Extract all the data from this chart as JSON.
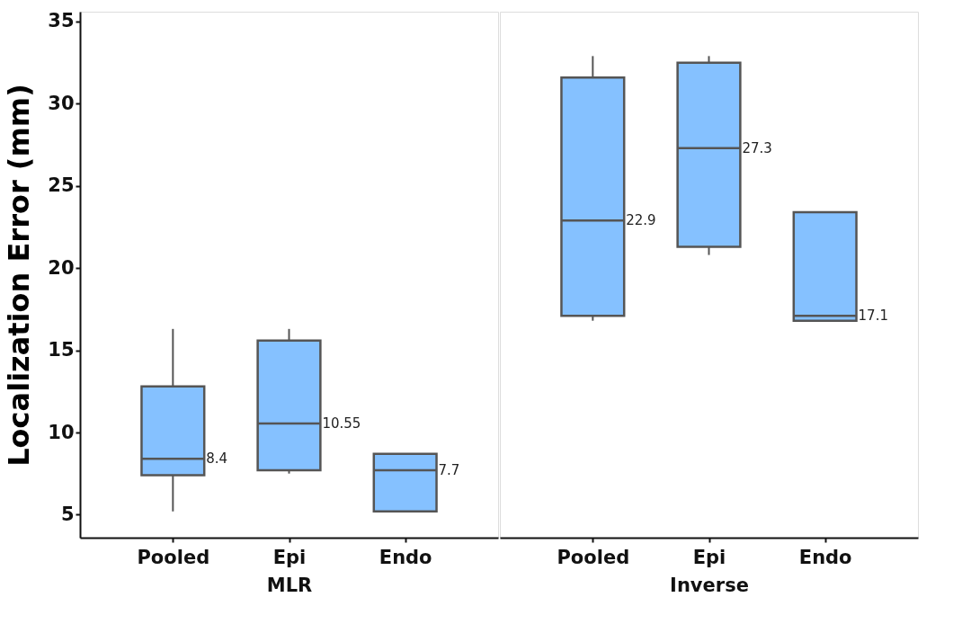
{
  "chart_data": [
    {
      "type": "box",
      "ylabel": "Localization Error (mm)",
      "xlabel": "MLR",
      "categories": [
        "Pooled",
        "Epi",
        "Endo"
      ],
      "boxes": [
        {
          "low": 5.2,
          "q1": 7.4,
          "median": 8.4,
          "q3": 12.8,
          "high": 16.3
        },
        {
          "low": 7.5,
          "q1": 7.7,
          "median": 10.55,
          "q3": 15.6,
          "high": 16.3
        },
        {
          "low": 5.2,
          "q1": 5.2,
          "median": 7.7,
          "q3": 8.7,
          "high": 8.7
        }
      ],
      "value_labels": [
        "8.4",
        "10.55",
        "7.7"
      ],
      "color": "#85c1ff",
      "ylim": [
        3.6,
        35.6
      ],
      "yticks": [
        5,
        10,
        15,
        20,
        25,
        30,
        35
      ],
      "grid": false
    },
    {
      "type": "box",
      "xlabel": "Inverse",
      "categories": [
        "Pooled",
        "Epi",
        "Endo"
      ],
      "boxes": [
        {
          "low": 16.8,
          "q1": 17.1,
          "median": 22.9,
          "q3": 31.6,
          "high": 32.9
        },
        {
          "low": 20.8,
          "q1": 21.3,
          "median": 27.3,
          "q3": 32.5,
          "high": 32.9
        },
        {
          "low": 16.8,
          "q1": 16.8,
          "median": 17.1,
          "q3": 23.4,
          "high": 23.4
        }
      ],
      "value_labels": [
        "22.9",
        "27.3",
        "17.1"
      ],
      "color": "#85c1ff",
      "ylim": [
        3.6,
        35.6
      ],
      "yticks": [
        5,
        10,
        15,
        20,
        25,
        30,
        35
      ],
      "grid": false,
      "tick_labels": "x"
    }
  ]
}
